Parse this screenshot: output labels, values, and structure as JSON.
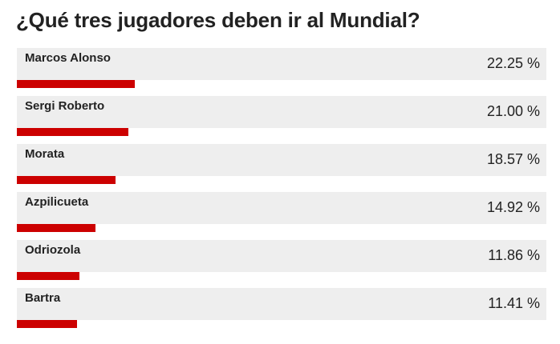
{
  "poll": {
    "title": "¿Qué tres jugadores deben ir al Mundial?"
  },
  "colors": {
    "row_background": "#eeeeee",
    "bar": "#cc0000",
    "text": "#222222"
  },
  "chart_data": {
    "type": "bar",
    "orientation": "horizontal",
    "title": "¿Qué tres jugadores deben ir al Mundial?",
    "unit": "%",
    "categories": [
      "Marcos Alonso",
      "Sergi Roberto",
      "Morata",
      "Azpilicueta",
      "Odriozola",
      "Bartra"
    ],
    "values": [
      22.25,
      21.0,
      18.57,
      14.92,
      11.86,
      11.41
    ],
    "value_labels": [
      "22.25 %",
      "21.00 %",
      "18.57 %",
      "14.92 %",
      "11.86 %",
      "11.41 %"
    ],
    "xlim": [
      0,
      100
    ]
  }
}
